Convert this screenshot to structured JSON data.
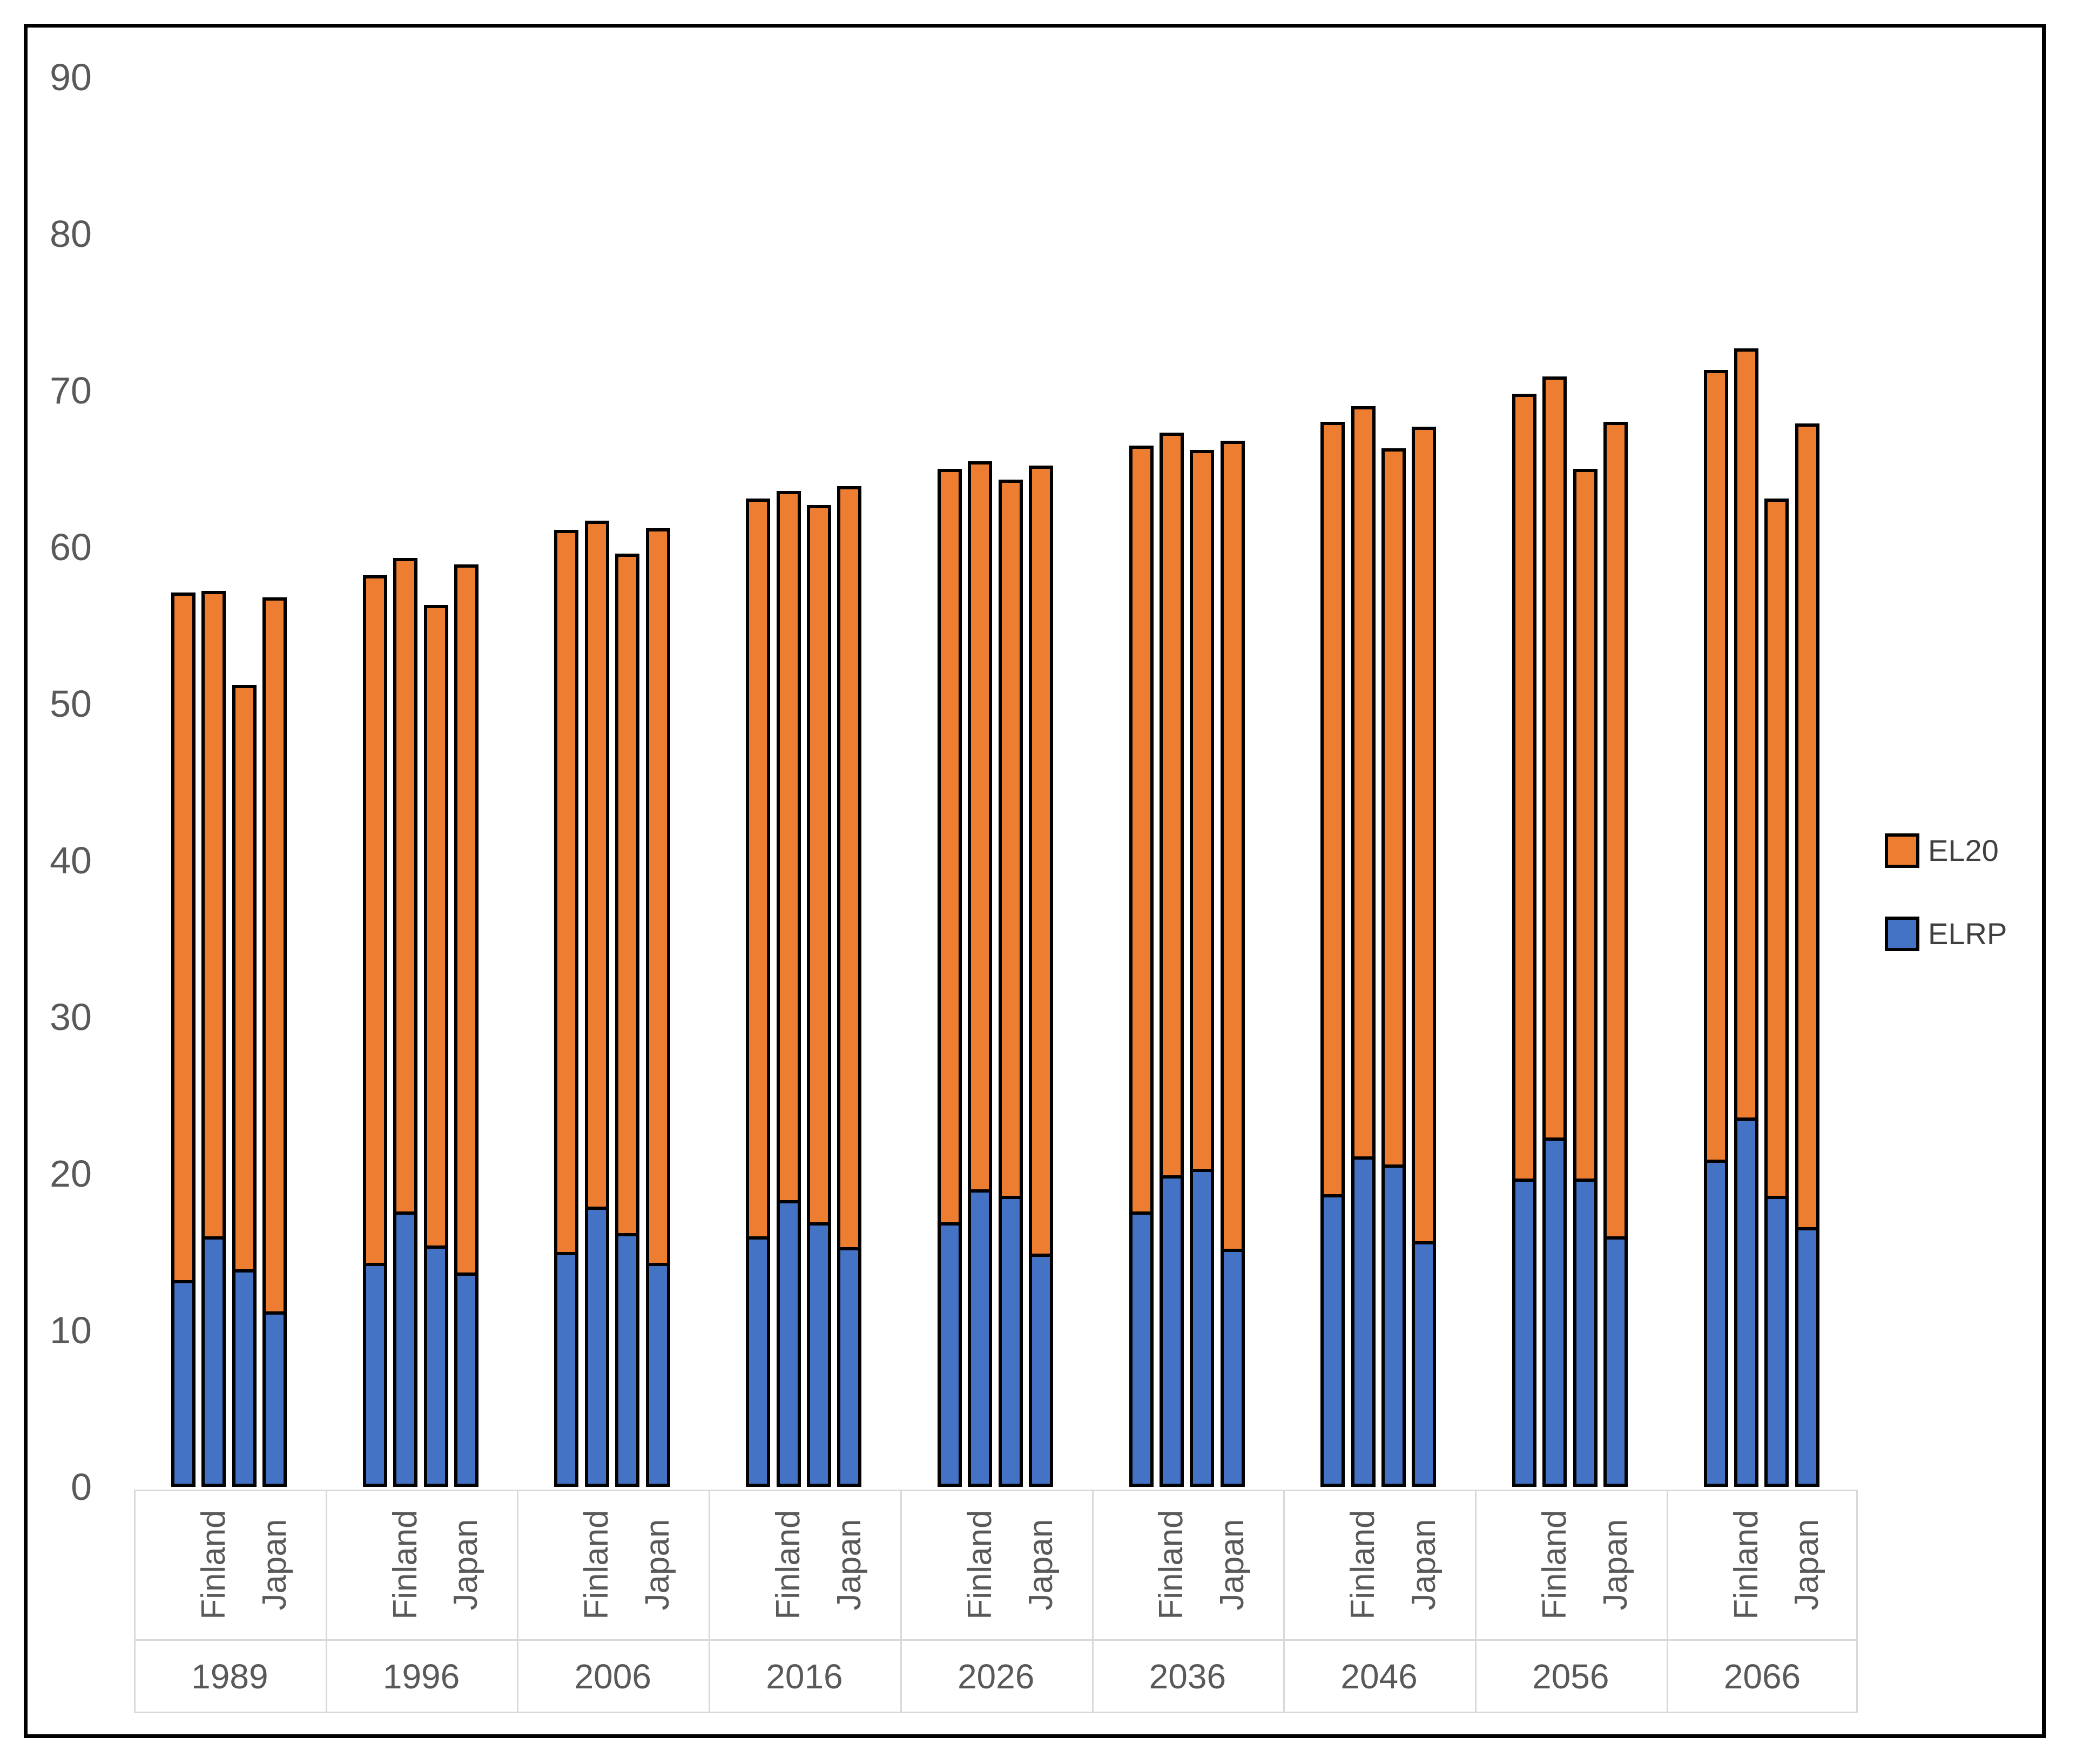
{
  "chart_data": {
    "type": "bar",
    "stacked": true,
    "title": "",
    "xlabel": "",
    "ylabel": "",
    "ylim": [
      0,
      90
    ],
    "ytick_interval": 10,
    "yticks": [
      "0",
      "10",
      "20",
      "30",
      "40",
      "50",
      "60",
      "70",
      "80",
      "90"
    ],
    "grid": false,
    "legend_position": "right",
    "legend": [
      "EL20",
      "ELRP"
    ],
    "colors": {
      "EL20": "#ED7D31",
      "ELRP": "#4472C4"
    },
    "bar_border_color": "#000000",
    "axis_text_color": "#595959",
    "category_line_color": "#d9d9d9",
    "countries_per_group": [
      "Finland",
      "Finland",
      "Japan",
      "Japan"
    ],
    "groups": [
      {
        "year": "1989",
        "bars": [
          {
            "country": "Finland",
            "ELRP": 13.2,
            "EL20": 43.9,
            "total": 57.1
          },
          {
            "country": "Finland",
            "ELRP": 16.0,
            "EL20": 41.2,
            "total": 57.2
          },
          {
            "country": "Japan",
            "ELRP": 13.9,
            "EL20": 37.3,
            "total": 51.2
          },
          {
            "country": "Japan",
            "ELRP": 11.2,
            "EL20": 45.6,
            "total": 56.8
          }
        ]
      },
      {
        "year": "1996",
        "bars": [
          {
            "country": "Finland",
            "ELRP": 14.3,
            "EL20": 43.9,
            "total": 58.2
          },
          {
            "country": "Finland",
            "ELRP": 17.6,
            "EL20": 41.7,
            "total": 59.3
          },
          {
            "country": "Japan",
            "ELRP": 15.4,
            "EL20": 40.9,
            "total": 56.3
          },
          {
            "country": "Japan",
            "ELRP": 13.7,
            "EL20": 45.2,
            "total": 58.9
          }
        ]
      },
      {
        "year": "2006",
        "bars": [
          {
            "country": "Finland",
            "ELRP": 15.0,
            "EL20": 46.1,
            "total": 61.1
          },
          {
            "country": "Finland",
            "ELRP": 17.9,
            "EL20": 43.8,
            "total": 61.7
          },
          {
            "country": "Japan",
            "ELRP": 16.2,
            "EL20": 43.4,
            "total": 59.6
          },
          {
            "country": "Japan",
            "ELRP": 14.3,
            "EL20": 46.9,
            "total": 61.2
          }
        ]
      },
      {
        "year": "2016",
        "bars": [
          {
            "country": "Finland",
            "ELRP": 16.0,
            "EL20": 47.1,
            "total": 63.1
          },
          {
            "country": "Finland",
            "ELRP": 18.3,
            "EL20": 45.3,
            "total": 63.6
          },
          {
            "country": "Japan",
            "ELRP": 16.9,
            "EL20": 45.8,
            "total": 62.7
          },
          {
            "country": "Japan",
            "ELRP": 15.3,
            "EL20": 48.6,
            "total": 63.9
          }
        ]
      },
      {
        "year": "2026",
        "bars": [
          {
            "country": "Finland",
            "ELRP": 16.9,
            "EL20": 48.1,
            "total": 65.0
          },
          {
            "country": "Finland",
            "ELRP": 19.0,
            "EL20": 46.5,
            "total": 65.5
          },
          {
            "country": "Japan",
            "ELRP": 18.6,
            "EL20": 45.7,
            "total": 64.3
          },
          {
            "country": "Japan",
            "ELRP": 14.9,
            "EL20": 50.3,
            "total": 65.2
          }
        ]
      },
      {
        "year": "2036",
        "bars": [
          {
            "country": "Finland",
            "ELRP": 17.6,
            "EL20": 48.9,
            "total": 66.5
          },
          {
            "country": "Finland",
            "ELRP": 19.9,
            "EL20": 47.4,
            "total": 67.3
          },
          {
            "country": "Japan",
            "ELRP": 20.3,
            "EL20": 45.9,
            "total": 66.2
          },
          {
            "country": "Japan",
            "ELRP": 15.2,
            "EL20": 51.6,
            "total": 66.8
          }
        ]
      },
      {
        "year": "2046",
        "bars": [
          {
            "country": "Finland",
            "ELRP": 18.7,
            "EL20": 49.3,
            "total": 68.0
          },
          {
            "country": "Finland",
            "ELRP": 21.1,
            "EL20": 47.9,
            "total": 69.0
          },
          {
            "country": "Japan",
            "ELRP": 20.6,
            "EL20": 45.7,
            "total": 66.3
          },
          {
            "country": "Japan",
            "ELRP": 15.7,
            "EL20": 52.0,
            "total": 67.7
          }
        ]
      },
      {
        "year": "2056",
        "bars": [
          {
            "country": "Finland",
            "ELRP": 19.7,
            "EL20": 50.1,
            "total": 69.8
          },
          {
            "country": "Finland",
            "ELRP": 22.3,
            "EL20": 48.6,
            "total": 70.9
          },
          {
            "country": "Japan",
            "ELRP": 19.7,
            "EL20": 45.3,
            "total": 65.0
          },
          {
            "country": "Japan",
            "ELRP": 16.0,
            "EL20": 52.0,
            "total": 68.0
          }
        ]
      },
      {
        "year": "2066",
        "bars": [
          {
            "country": "Finland",
            "ELRP": 20.9,
            "EL20": 50.4,
            "total": 71.3
          },
          {
            "country": "Finland",
            "ELRP": 23.6,
            "EL20": 49.1,
            "total": 72.7
          },
          {
            "country": "Japan",
            "ELRP": 18.6,
            "EL20": 44.5,
            "total": 63.1
          },
          {
            "country": "Japan",
            "ELRP": 16.6,
            "EL20": 51.3,
            "total": 67.9
          }
        ]
      }
    ]
  }
}
